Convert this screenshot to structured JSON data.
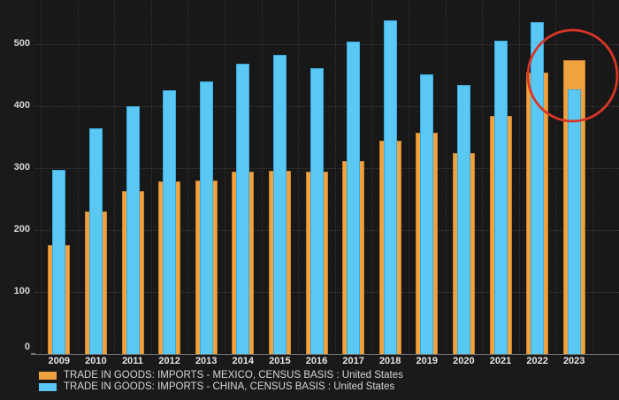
{
  "chart_data": {
    "type": "bar",
    "categories": [
      "2009",
      "2010",
      "2011",
      "2012",
      "2013",
      "2014",
      "2015",
      "2016",
      "2017",
      "2018",
      "2019",
      "2020",
      "2021",
      "2022",
      "2023"
    ],
    "series": [
      {
        "name": "TRADE IN GOODS: IMPORTS - MEXICO, CENSUS BASIS : United States",
        "color": "#f0a23e",
        "edge_color": "#cc8226",
        "values": [
          176,
          230,
          263,
          278,
          280,
          294,
          296,
          294,
          312,
          344,
          357,
          325,
          385,
          455,
          475
        ]
      },
      {
        "name": "TRADE IN GOODS: IMPORTS - CHINA, CENSUS BASIS : United States",
        "color": "#5ac8f5",
        "edge_color": "#3ea9dd",
        "values": [
          297,
          365,
          400,
          426,
          440,
          468,
          483,
          462,
          505,
          539,
          452,
          435,
          506,
          536,
          427
        ]
      }
    ],
    "title": "",
    "xlabel": "",
    "ylabel": "",
    "yticks": [
      0,
      100,
      200,
      300,
      400,
      500
    ],
    "ylim": [
      0,
      560
    ],
    "grid": "dotted",
    "legend_position": "bottom-left",
    "annotation": {
      "shape": "ellipse",
      "color": "#d93527",
      "highlights": [
        "2022",
        "2023"
      ]
    }
  },
  "colors": {
    "background": "#1a1a1a",
    "plot_background": "#181818",
    "grid": "#3e3e3e",
    "axis": "#757575",
    "tick_text": "#d6d6d6",
    "legend_text": "#d6d6d6"
  }
}
